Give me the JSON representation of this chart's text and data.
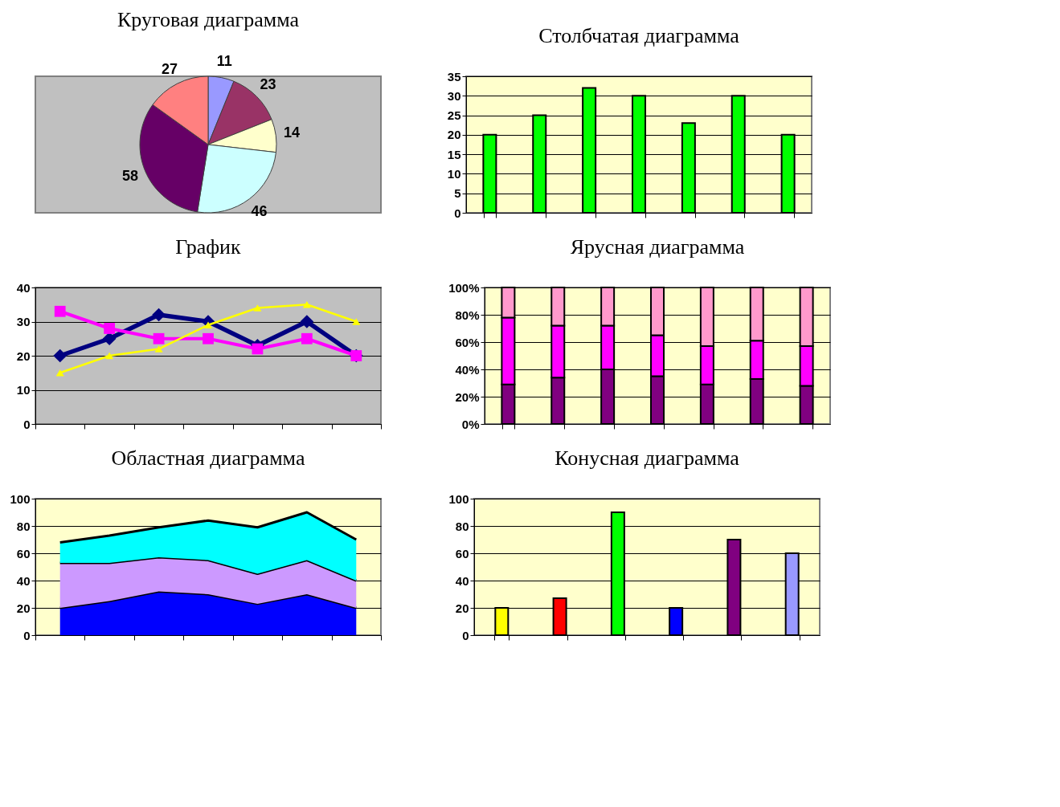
{
  "chart_data": [
    {
      "type": "pie",
      "title": "Круговая диаграмма",
      "categories": [
        null,
        null,
        null,
        null,
        null,
        null
      ],
      "values": [
        11,
        23,
        14,
        46,
        58,
        27
      ],
      "colors": [
        "#9999ff",
        "#993366",
        "#ffffcc",
        "#ccffff",
        "#660066",
        "#ff8080"
      ],
      "data_labels": true
    },
    {
      "type": "bar",
      "title": "Столбчатая диаграмма",
      "categories": [
        null,
        null,
        null,
        null,
        null,
        null,
        null
      ],
      "values": [
        20,
        25,
        32,
        30,
        23,
        30,
        20
      ],
      "color": "#00ff00",
      "ylim": [
        0,
        35
      ],
      "yticks": [
        0,
        5,
        10,
        15,
        20,
        25,
        30,
        35
      ],
      "grid": "y"
    },
    {
      "type": "line",
      "title": "График",
      "categories": [
        null,
        null,
        null,
        null,
        null,
        null,
        null
      ],
      "series": [
        {
          "color": "#000080",
          "marker": "diamond",
          "values": [
            20,
            25,
            32,
            30,
            23,
            30,
            20
          ]
        },
        {
          "color": "#ff00ff",
          "marker": "square",
          "values": [
            33,
            28,
            25,
            25,
            22,
            25,
            20
          ]
        },
        {
          "color": "#ffff00",
          "marker": "triangle",
          "values": [
            15,
            20,
            22,
            29,
            34,
            35,
            30
          ]
        }
      ],
      "ylim": [
        0,
        40
      ],
      "yticks": [
        0,
        10,
        20,
        30,
        40
      ],
      "grid": "y"
    },
    {
      "type": "bar",
      "title": "Ярусная диаграмма",
      "stacked": true,
      "categories": [
        null,
        null,
        null,
        null,
        null,
        null,
        null
      ],
      "series": [
        {
          "color": "#800080",
          "values": [
            29,
            34,
            40,
            35,
            29,
            33,
            28
          ]
        },
        {
          "color": "#ff00ff",
          "values": [
            49,
            38,
            32,
            30,
            28,
            28,
            29
          ]
        },
        {
          "color": "#ff99cc",
          "values": [
            22,
            28,
            28,
            35,
            43,
            39,
            43
          ]
        }
      ],
      "ylim": [
        0,
        100
      ],
      "yticks": [
        {
          "value": 0,
          "label": "0%"
        },
        {
          "value": 20,
          "label": "20%"
        },
        {
          "value": 40,
          "label": "40%"
        },
        {
          "value": 60,
          "label": "60%"
        },
        {
          "value": 80,
          "label": "80%"
        },
        {
          "value": 100,
          "label": "100%"
        }
      ],
      "grid": "y"
    },
    {
      "type": "area",
      "title": "Областная диаграмма",
      "stacked": true,
      "categories": [
        null,
        null,
        null,
        null,
        null,
        null,
        null
      ],
      "series": [
        {
          "color": "#0000ff",
          "values": [
            20,
            25,
            32,
            30,
            23,
            30,
            20
          ]
        },
        {
          "color": "#cc99ff",
          "values": [
            33,
            28,
            25,
            25,
            22,
            25,
            20
          ]
        },
        {
          "color": "#00ffff",
          "values": [
            15,
            20,
            22,
            29,
            34,
            35,
            30
          ]
        }
      ],
      "ylim": [
        0,
        100
      ],
      "yticks": [
        0,
        20,
        40,
        60,
        80,
        100
      ],
      "grid": "y"
    },
    {
      "type": "bar",
      "title": "Конусная диаграмма",
      "categories": [
        null,
        null,
        null,
        null,
        null,
        null
      ],
      "values": [
        20,
        27,
        90,
        20,
        70,
        60
      ],
      "colors": [
        "#ffff00",
        "#ff0000",
        "#00ff00",
        "#0000ff",
        "#800080",
        "#9999ff"
      ],
      "ylim": [
        0,
        100
      ],
      "yticks": [
        0,
        20,
        40,
        60,
        80,
        100
      ],
      "grid": "y"
    }
  ]
}
